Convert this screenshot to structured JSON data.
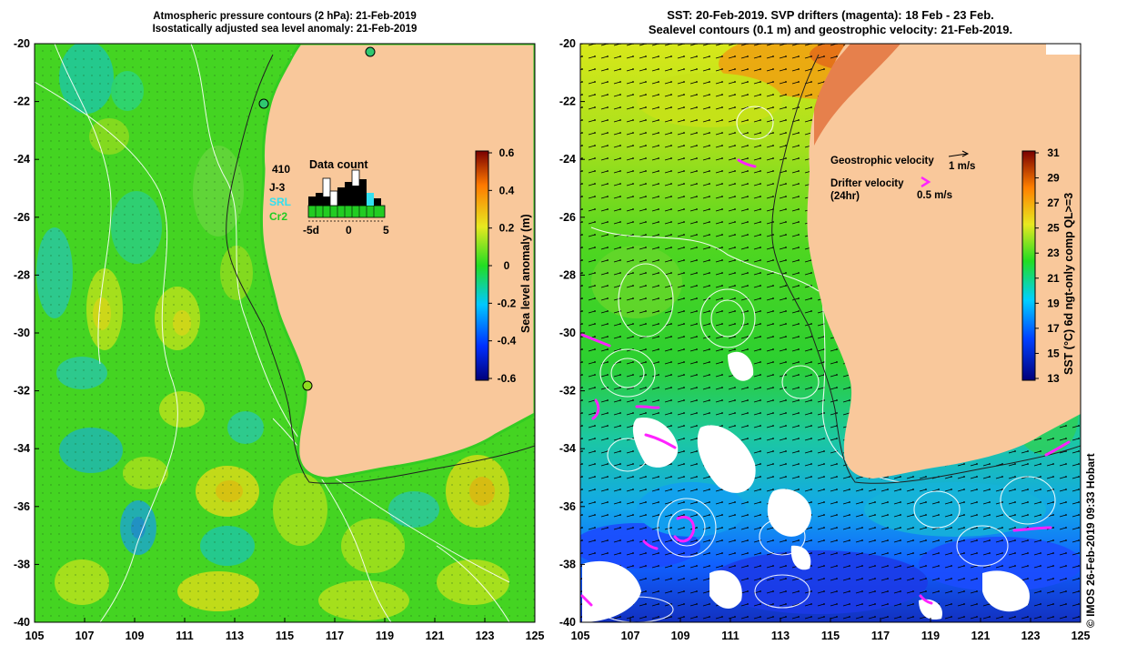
{
  "left_panel": {
    "title_line1": "Atmospheric pressure contours (2 hPa): 21-Feb-2019",
    "title_line2": "Isostatically adjusted sea level anomaly: 21-Feb-2019",
    "colorbar": {
      "label": "Sea level anomaly (m)",
      "ticks": [
        "0.6",
        "0.4",
        "0.2",
        "0",
        "-0.2",
        "-0.4",
        "-0.6"
      ]
    },
    "data_count": {
      "title": "Data count",
      "max_value": "410",
      "series_labels": [
        "J-3",
        "SRL",
        "Cr2"
      ],
      "series_colors": [
        "#000000",
        "#33e0f0",
        "#22cc22"
      ],
      "x_ticks": [
        "-5d",
        "0",
        "5"
      ]
    }
  },
  "right_panel": {
    "title_line1": "SST: 20-Feb-2019. SVP drifters (magenta): 18 Feb - 23 Feb.",
    "title_line2": "Sealevel contours (0.1 m) and geostrophic velocity: 21-Feb-2019.",
    "colorbar": {
      "label": "SST (°C) 6d ngt-only comp QL>=3",
      "ticks": [
        "31",
        "29",
        "27",
        "25",
        "23",
        "21",
        "19",
        "17",
        "15",
        "13"
      ]
    },
    "legend": {
      "geostrophic_label": "Geostrophic velocity",
      "geostrophic_scale": "1 m/s",
      "drifter_label_line1": "Drifter velocity",
      "drifter_label_line2": "(24hr)",
      "drifter_scale": "0.5 m/s"
    }
  },
  "axes": {
    "x_ticks": [
      "105",
      "107",
      "109",
      "111",
      "113",
      "115",
      "117",
      "119",
      "121",
      "123",
      "125"
    ],
    "y_ticks": [
      "-20",
      "-22",
      "-24",
      "-26",
      "-28",
      "-30",
      "-32",
      "-34",
      "-36",
      "-38",
      "-40"
    ]
  },
  "copyright": "© IMOS 26-Feb-2019 09:33 Hobart",
  "colors": {
    "land": "#f9c89b",
    "ocean_green": "#44d422",
    "drifter": "#ff22ff"
  }
}
